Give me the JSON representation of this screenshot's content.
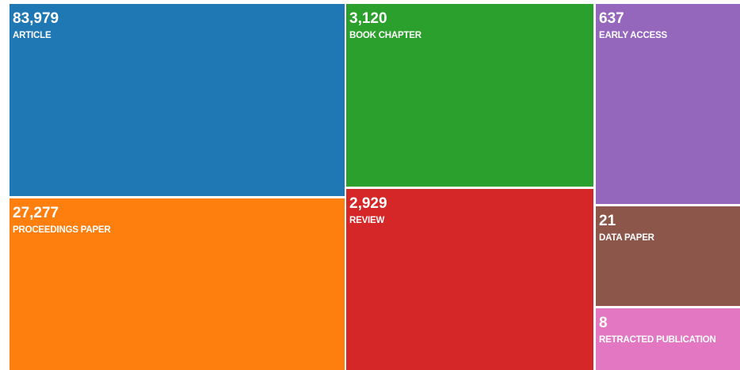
{
  "chart_data": {
    "type": "treemap",
    "categories": [
      "ARTICLE",
      "PROCEEDINGS PAPER",
      "BOOK CHAPTER",
      "REVIEW",
      "EARLY ACCESS",
      "DATA PAPER",
      "RETRACTED PUBLICATION"
    ],
    "values": [
      83979,
      27277,
      3120,
      2929,
      637,
      21,
      8
    ],
    "value_labels": [
      "83,979",
      "27,277",
      "3,120",
      "2,929",
      "637",
      "21",
      "8"
    ],
    "colors": [
      "#1f77b4",
      "#ff7f0e",
      "#2ca02c",
      "#d62728",
      "#9467bd",
      "#8c564b",
      "#e377c2"
    ]
  }
}
